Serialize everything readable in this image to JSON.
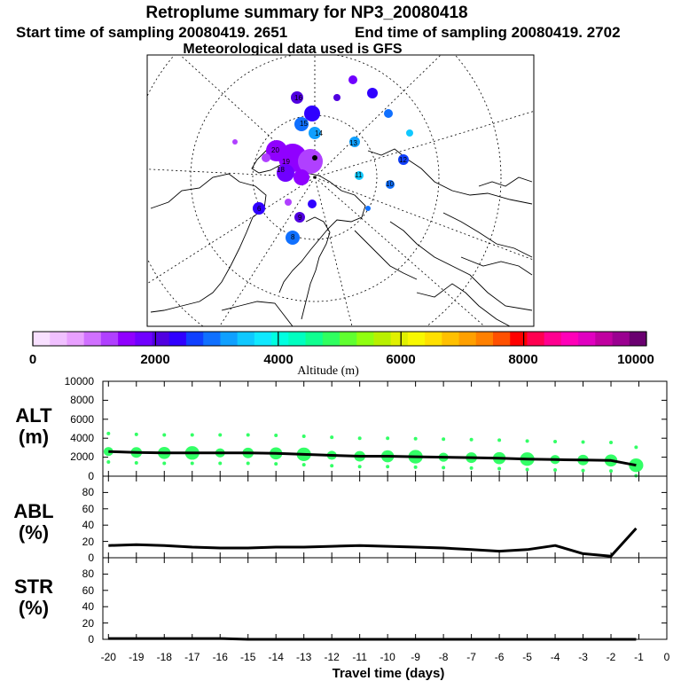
{
  "header": {
    "title": "Retroplume summary for NP3_20080418",
    "start_label": "Start time of sampling 20080419.  2651",
    "end_label": "End time of sampling 20080419.  2702",
    "met_label": "Meteorological data used is GFS"
  },
  "colorbar": {
    "label": "Altitude (m)",
    "ticks": [
      "0",
      "2000",
      "4000",
      "6000",
      "8000",
      "10000"
    ],
    "colors": [
      "#f8e0ff",
      "#f0c0ff",
      "#e8a0ff",
      "#d070ff",
      "#b040ff",
      "#9000ff",
      "#7000ff",
      "#5000e0",
      "#3000ff",
      "#1040ff",
      "#1070ff",
      "#10a0ff",
      "#10c8ff",
      "#10e8ff",
      "#00ffe0",
      "#00ffc0",
      "#10ff90",
      "#30ff60",
      "#60ff30",
      "#90ff10",
      "#b8f000",
      "#e0f000",
      "#f8f800",
      "#ffe000",
      "#ffc000",
      "#ffa000",
      "#ff8000",
      "#ff5000",
      "#ff0000",
      "#ff0050",
      "#ff0090",
      "#ff00b8",
      "#e000c0",
      "#c000a0",
      "#9a0090",
      "#6a0070"
    ]
  },
  "map": {
    "labels": [
      "15",
      "20",
      "14",
      "19",
      "16",
      "13",
      "18",
      "12",
      "10",
      "11",
      "6",
      "8",
      "9"
    ]
  },
  "panels": {
    "alt": {
      "label_top": "ALT",
      "label_bottom": "(m)",
      "yticks": [
        "0",
        "2000",
        "4000",
        "6000",
        "8000",
        "10000"
      ]
    },
    "abl": {
      "label_top": "ABL",
      "label_bottom": "(%)",
      "yticks": [
        "0",
        "20",
        "40",
        "60",
        "80"
      ]
    },
    "str": {
      "label_top": "STR",
      "label_bottom": "(%)",
      "yticks": [
        "0",
        "20",
        "40",
        "60",
        "80"
      ]
    }
  },
  "xaxis": {
    "label": "Travel time (days)",
    "ticks": [
      "-20",
      "-19",
      "-18",
      "-17",
      "-16",
      "-15",
      "-14",
      "-13",
      "-12",
      "-11",
      "-10",
      "-9",
      "-8",
      "-7",
      "-6",
      "-5",
      "-4",
      "-3",
      "-2",
      "-1",
      "0"
    ]
  },
  "chart_data": [
    {
      "type": "line",
      "title": "ALT",
      "ylabel": "ALT (m)",
      "xlabel": "Travel time (days)",
      "xlim": [
        -20,
        0
      ],
      "ylim": [
        0,
        10000
      ],
      "x": [
        -20,
        -19,
        -18,
        -17,
        -16,
        -15,
        -14,
        -13,
        -12,
        -11,
        -10,
        -9,
        -8,
        -7,
        -6,
        -5,
        -4,
        -3,
        -2,
        -1.1
      ],
      "values": [
        2600,
        2500,
        2450,
        2450,
        2450,
        2450,
        2400,
        2300,
        2200,
        2100,
        2100,
        2050,
        2000,
        1950,
        1900,
        1800,
        1750,
        1700,
        1650,
        1150
      ]
    },
    {
      "type": "line",
      "title": "ABL",
      "ylabel": "ABL (%)",
      "xlabel": "Travel time (days)",
      "xlim": [
        -20,
        0
      ],
      "ylim": [
        0,
        100
      ],
      "x": [
        -20,
        -19,
        -18,
        -17,
        -16,
        -15,
        -14,
        -13,
        -12,
        -11,
        -10,
        -9,
        -8,
        -7,
        -6,
        -5,
        -4,
        -3,
        -2,
        -1.1
      ],
      "values": [
        15,
        16,
        15,
        13,
        12,
        12,
        13,
        13,
        14,
        15,
        14,
        13,
        12,
        10,
        8,
        10,
        15,
        5,
        2,
        36
      ]
    },
    {
      "type": "line",
      "title": "STR",
      "ylabel": "STR (%)",
      "xlabel": "Travel time (days)",
      "xlim": [
        -20,
        0
      ],
      "ylim": [
        0,
        100
      ],
      "x": [
        -20,
        -19,
        -18,
        -17,
        -16,
        -15,
        -14,
        -13,
        -12,
        -11,
        -10,
        -9,
        -8,
        -7,
        -6,
        -5,
        -4,
        -3,
        -2,
        -1.1
      ],
      "values": [
        1,
        1,
        1,
        1,
        1,
        0,
        0,
        0,
        0,
        0,
        0,
        0,
        0,
        0,
        0,
        0,
        0,
        0,
        0,
        0
      ]
    }
  ]
}
